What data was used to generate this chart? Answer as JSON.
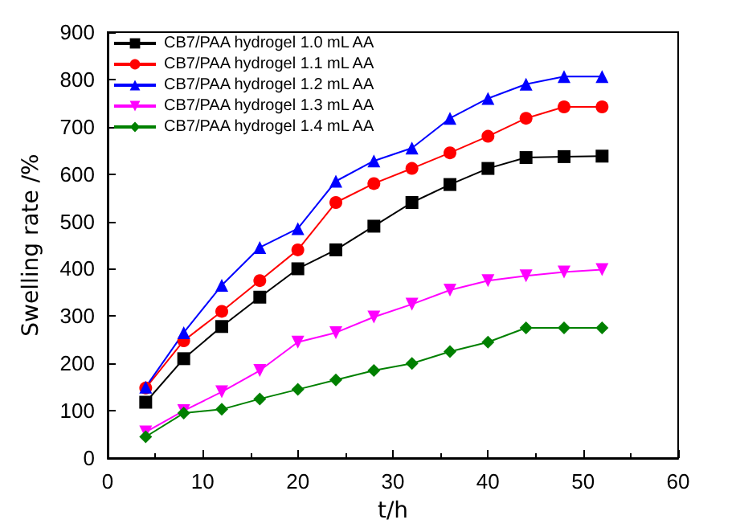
{
  "chart_data": {
    "type": "line",
    "xlabel": "t/h",
    "ylabel": "Swelling rate /%",
    "x": [
      4,
      8,
      12,
      16,
      20,
      24,
      28,
      32,
      36,
      40,
      44,
      48,
      52
    ],
    "series": [
      {
        "name": "CB7/PAA hydrogel 1.0 mL AA",
        "color": "#000000",
        "marker": "square",
        "values": [
          118,
          210,
          278,
          340,
          400,
          440,
          490,
          540,
          578,
          612,
          635,
          637,
          638
        ]
      },
      {
        "name": "CB7/PAA hydrogel 1.1 mL AA",
        "color": "#ff0000",
        "marker": "circle",
        "values": [
          148,
          248,
          310,
          375,
          440,
          540,
          580,
          612,
          645,
          680,
          718,
          742,
          742
        ]
      },
      {
        "name": "CB7/PAA hydrogel 1.2 mL AA",
        "color": "#0000ff",
        "marker": "triangle",
        "values": [
          150,
          265,
          365,
          445,
          485,
          585,
          628,
          655,
          718,
          760,
          790,
          806,
          806
        ]
      },
      {
        "name": "CB7/PAA hydrogel 1.3 mL AA",
        "color": "#ff00ff",
        "marker": "triangle-down",
        "values": [
          55,
          100,
          140,
          185,
          245,
          265,
          298,
          325,
          355,
          375,
          385,
          393,
          398
        ]
      },
      {
        "name": "CB7/PAA hydrogel 1.4 mL AA",
        "color": "#008000",
        "marker": "diamond",
        "values": [
          45,
          95,
          103,
          125,
          145,
          165,
          185,
          200,
          225,
          245,
          275,
          275,
          275
        ]
      }
    ],
    "xlim": [
      0,
      60
    ],
    "xticks": [
      0,
      10,
      20,
      30,
      40,
      50,
      60
    ],
    "ylim": [
      0,
      900
    ],
    "yticks": [
      0,
      100,
      200,
      300,
      400,
      500,
      600,
      700,
      800,
      900
    ],
    "legend": "top left",
    "grid": false,
    "line_style": "solid"
  }
}
